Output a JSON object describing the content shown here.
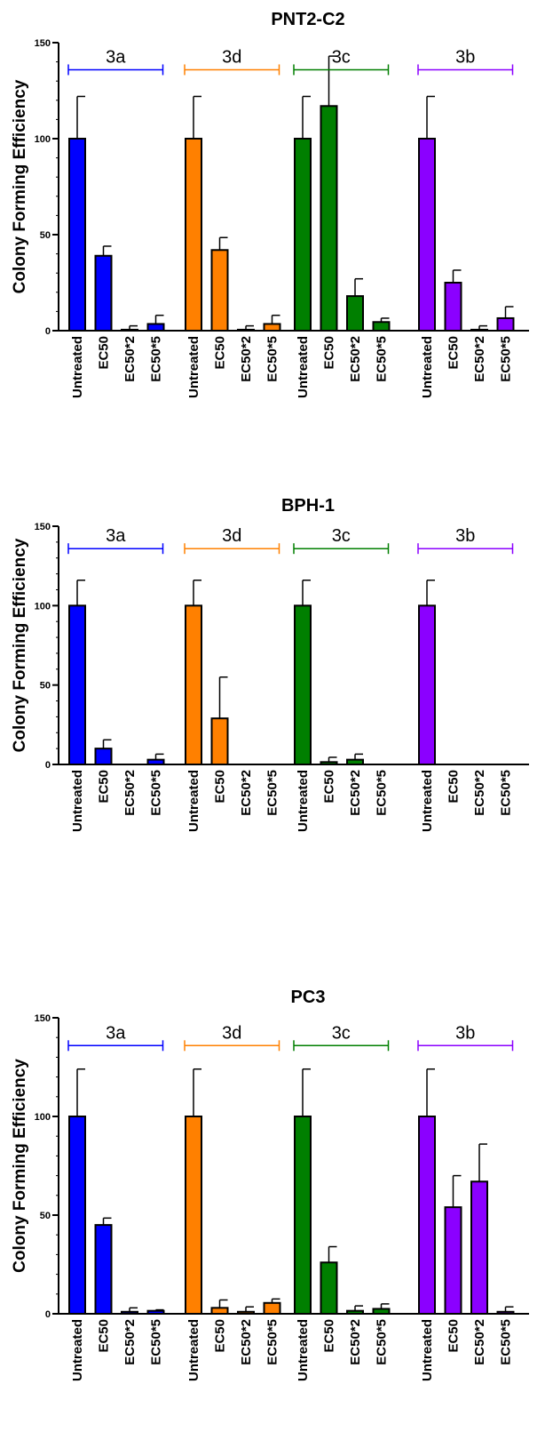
{
  "chart_data": [
    {
      "type": "bar",
      "title": "PNT2-C2",
      "ylabel": "Colony Forming Efficiency",
      "ylim": [
        0,
        150
      ],
      "yticks": [
        0,
        50,
        100,
        150
      ],
      "categories": [
        "Untreated",
        "EC50",
        "EC50*2",
        "EC50*5"
      ],
      "series": [
        {
          "name": "3a",
          "color": "#0000ff",
          "values": [
            100,
            39,
            0.5,
            3.5
          ],
          "errors": [
            22,
            5,
            2,
            4.5
          ]
        },
        {
          "name": "3d",
          "color": "#ff8000",
          "values": [
            100,
            42,
            0.5,
            3.5
          ],
          "errors": [
            22,
            6.5,
            2,
            4.5
          ]
        },
        {
          "name": "3c",
          "color": "#007f00",
          "values": [
            100,
            117,
            18,
            4.5
          ],
          "errors": [
            22,
            26,
            9,
            2
          ]
        },
        {
          "name": "3b",
          "color": "#8b00ff",
          "values": [
            100,
            25,
            0.5,
            6.5
          ],
          "errors": [
            22,
            6.5,
            2,
            6
          ]
        }
      ]
    },
    {
      "type": "bar",
      "title": "BPH-1",
      "ylabel": "Colony Forming Efficiency",
      "ylim": [
        0,
        150
      ],
      "yticks": [
        0,
        50,
        100,
        150
      ],
      "categories": [
        "Untreated",
        "EC50",
        "EC50*2",
        "EC50*5"
      ],
      "series": [
        {
          "name": "3a",
          "color": "#0000ff",
          "values": [
            100,
            10,
            0,
            3
          ],
          "errors": [
            16,
            5.5,
            0,
            3.5
          ]
        },
        {
          "name": "3d",
          "color": "#ff8000",
          "values": [
            100,
            29,
            0,
            0
          ],
          "errors": [
            16,
            26,
            0,
            0
          ]
        },
        {
          "name": "3c",
          "color": "#007f00",
          "values": [
            100,
            1.5,
            3,
            0
          ],
          "errors": [
            16,
            3,
            3.5,
            0
          ]
        },
        {
          "name": "3b",
          "color": "#8b00ff",
          "values": [
            100,
            0,
            0,
            0
          ],
          "errors": [
            16,
            0,
            0,
            0
          ]
        }
      ]
    },
    {
      "type": "bar",
      "title": "PC3",
      "ylabel": "Colony Forming Efficiency",
      "ylim": [
        0,
        150
      ],
      "yticks": [
        0,
        50,
        100,
        150
      ],
      "categories": [
        "Untreated",
        "EC50",
        "EC50*2",
        "EC50*5"
      ],
      "series": [
        {
          "name": "3a",
          "color": "#0000ff",
          "values": [
            100,
            45,
            1,
            1.5
          ],
          "errors": [
            24,
            3.5,
            2,
            0.5
          ]
        },
        {
          "name": "3d",
          "color": "#ff8000",
          "values": [
            100,
            3,
            1,
            5.5
          ],
          "errors": [
            24,
            4,
            2.5,
            2
          ]
        },
        {
          "name": "3c",
          "color": "#007f00",
          "values": [
            100,
            26,
            1.5,
            2.5
          ],
          "errors": [
            24,
            8,
            2.5,
            2.5
          ]
        },
        {
          "name": "3b",
          "color": "#8b00ff",
          "values": [
            100,
            54,
            67,
            1
          ],
          "errors": [
            24,
            16,
            19,
            2.5
          ]
        }
      ]
    }
  ]
}
